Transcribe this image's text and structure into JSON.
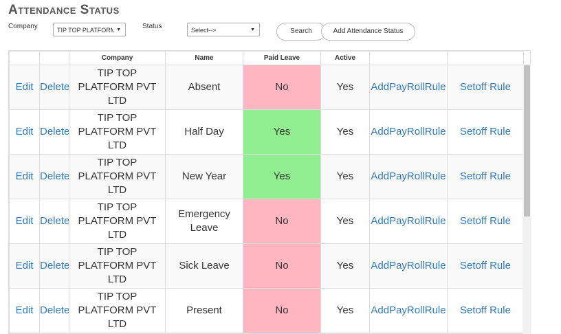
{
  "header": {
    "title": "Attendance Status"
  },
  "filters": {
    "company_label": "Company",
    "company_value": "TIP TOP PLATFORM PVT LTD",
    "status_label": "Status",
    "status_value": "Select-->"
  },
  "buttons": {
    "search": "Search",
    "add": "Add Attendance Status"
  },
  "table": {
    "columns": {
      "company": "Company",
      "name": "Name",
      "paid_leave": "Paid Leave",
      "active": "Active"
    },
    "actions": {
      "edit": "Edit",
      "delete": "Delete",
      "payroll": "AddPayRollRule",
      "setoff": "Setoff Rule"
    },
    "paid_leave_colors": {
      "Yes": "#90ee90",
      "No": "#ffb6c1"
    },
    "rows": [
      {
        "company": "TIP TOP PLATFORM PVT LTD",
        "name": "Absent",
        "paid_leave": "No",
        "active": "Yes"
      },
      {
        "company": "TIP TOP PLATFORM PVT LTD",
        "name": "Half Day",
        "paid_leave": "Yes",
        "active": "Yes"
      },
      {
        "company": "TIP TOP PLATFORM PVT LTD",
        "name": "New Year",
        "paid_leave": "Yes",
        "active": "Yes"
      },
      {
        "company": "TIP TOP PLATFORM PVT LTD",
        "name": "Emergency Leave",
        "paid_leave": "No",
        "active": "Yes"
      },
      {
        "company": "TIP TOP PLATFORM PVT LTD",
        "name": "Sick Leave",
        "paid_leave": "No",
        "active": "Yes"
      },
      {
        "company": "TIP TOP PLATFORM PVT LTD",
        "name": "Present",
        "paid_leave": "No",
        "active": "Yes"
      }
    ]
  }
}
